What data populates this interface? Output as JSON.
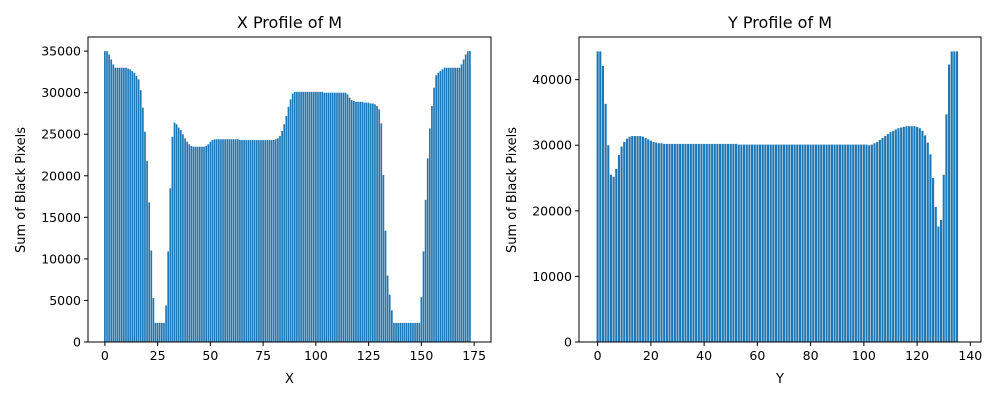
{
  "chart_data": [
    {
      "type": "bar",
      "title": "X Profile of M",
      "xlabel": "X",
      "ylabel": "Sum of Black Pixels",
      "xlim": [
        -8,
        183
      ],
      "ylim": [
        0,
        36700
      ],
      "xticks": [
        0,
        25,
        50,
        75,
        100,
        125,
        150,
        175
      ],
      "yticks": [
        0,
        5000,
        10000,
        15000,
        20000,
        25000,
        30000,
        35000
      ],
      "grid": false,
      "color": "#1f77b4",
      "values": [
        35000,
        35000,
        34600,
        34000,
        33400,
        33000,
        33000,
        33000,
        33000,
        33000,
        33000,
        32900,
        32800,
        32600,
        32400,
        32000,
        31600,
        30300,
        28200,
        25300,
        21800,
        16800,
        11000,
        5300,
        2300,
        2300,
        2300,
        2300,
        2300,
        4400,
        10900,
        18500,
        24700,
        26400,
        26200,
        25800,
        25500,
        25000,
        24500,
        24100,
        23800,
        23600,
        23500,
        23500,
        23500,
        23500,
        23500,
        23500,
        23600,
        23800,
        24100,
        24300,
        24400,
        24400,
        24400,
        24400,
        24400,
        24400,
        24400,
        24400,
        24400,
        24400,
        24400,
        24400,
        24300,
        24300,
        24300,
        24300,
        24300,
        24300,
        24300,
        24300,
        24300,
        24300,
        24300,
        24300,
        24300,
        24300,
        24300,
        24300,
        24300,
        24400,
        24500,
        24800,
        25400,
        26200,
        27200,
        28300,
        29200,
        29900,
        30100,
        30100,
        30100,
        30100,
        30100,
        30100,
        30100,
        30100,
        30100,
        30100,
        30100,
        30100,
        30100,
        30100,
        30000,
        30000,
        30000,
        30000,
        30000,
        30000,
        30000,
        30000,
        30000,
        30000,
        30000,
        29800,
        29400,
        29100,
        29000,
        28900,
        28900,
        28900,
        28900,
        28800,
        28800,
        28800,
        28700,
        28700,
        28600,
        28400,
        28000,
        26300,
        20100,
        13400,
        8000,
        5700,
        3800,
        2300,
        2300,
        2300,
        2300,
        2300,
        2300,
        2300,
        2300,
        2300,
        2300,
        2300,
        2300,
        2300,
        5400,
        10900,
        17100,
        22100,
        25700,
        28400,
        30600,
        32100,
        32400,
        32600,
        32800,
        33000,
        33000,
        33000,
        33000,
        33000,
        33000,
        33000,
        33000,
        33400,
        34000,
        34600,
        35000,
        35000
      ]
    },
    {
      "type": "bar",
      "title": "Y Profile of M",
      "xlabel": "Y",
      "ylabel": "Sum of Black Pixels",
      "xlim": [
        -7,
        144
      ],
      "ylim": [
        0,
        46500
      ],
      "xticks": [
        0,
        20,
        40,
        60,
        80,
        100,
        120,
        140
      ],
      "yticks": [
        0,
        10000,
        20000,
        30000,
        40000
      ],
      "grid": false,
      "color": "#1f77b4",
      "values": [
        44300,
        44300,
        42100,
        36300,
        30000,
        25500,
        25200,
        26400,
        28500,
        29800,
        30500,
        31000,
        31300,
        31400,
        31400,
        31400,
        31400,
        31300,
        31100,
        30900,
        30700,
        30500,
        30400,
        30300,
        30300,
        30200,
        30200,
        30200,
        30200,
        30200,
        30200,
        30200,
        30200,
        30200,
        30200,
        30200,
        30200,
        30200,
        30200,
        30200,
        30200,
        30200,
        30200,
        30200,
        30200,
        30200,
        30200,
        30200,
        30200,
        30200,
        30200,
        30200,
        30200,
        30100,
        30100,
        30100,
        30100,
        30100,
        30100,
        30100,
        30100,
        30100,
        30100,
        30100,
        30100,
        30100,
        30100,
        30100,
        30100,
        30100,
        30100,
        30100,
        30100,
        30100,
        30100,
        30100,
        30100,
        30100,
        30100,
        30100,
        30100,
        30100,
        30100,
        30100,
        30100,
        30100,
        30100,
        30100,
        30100,
        30100,
        30100,
        30100,
        30100,
        30100,
        30100,
        30100,
        30100,
        30100,
        30100,
        30100,
        30100,
        30100,
        30000,
        30100,
        30300,
        30500,
        30800,
        31100,
        31400,
        31700,
        32000,
        32200,
        32400,
        32600,
        32700,
        32800,
        32900,
        32900,
        32900,
        32900,
        32800,
        32600,
        32200,
        31500,
        30400,
        28600,
        25000,
        20600,
        17600,
        18600,
        25500,
        34700,
        42300,
        44300,
        44300,
        44300
      ]
    }
  ]
}
